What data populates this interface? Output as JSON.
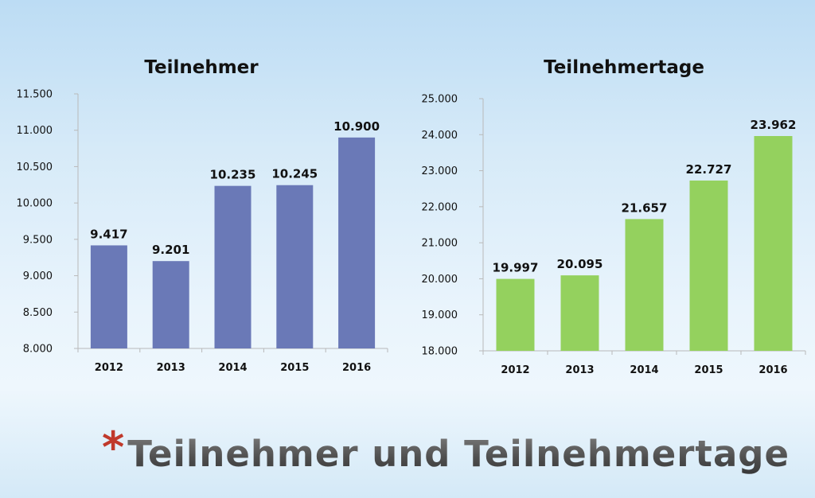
{
  "slide": {
    "title_marker": "*",
    "title": "Teilnehmer und Teilnehmertage"
  },
  "colors": {
    "series_left": "#6a79b7",
    "series_right": "#94d15e",
    "title_marker": "#c0392b"
  },
  "chart_data": [
    {
      "type": "bar",
      "title": "Teilnehmer",
      "categories": [
        "2012",
        "2013",
        "2014",
        "2015",
        "2016"
      ],
      "values": [
        9417,
        9201,
        10235,
        10245,
        10900
      ],
      "data_labels": [
        "9.417",
        "9.201",
        "10.235",
        "10.245",
        "10.900"
      ],
      "ylim": [
        8000,
        11500
      ],
      "yticks": [
        8000,
        8500,
        9000,
        9500,
        10000,
        10500,
        11000,
        11500
      ],
      "ytick_labels": [
        "8.000",
        "8.500",
        "9.000",
        "9.500",
        "10.000",
        "10.500",
        "11.000",
        "11.500"
      ],
      "xlabel": "",
      "ylabel": "",
      "grid": false,
      "legend": "none"
    },
    {
      "type": "bar",
      "title": "Teilnehmertage",
      "categories": [
        "2012",
        "2013",
        "2014",
        "2015",
        "2016"
      ],
      "values": [
        19997,
        20095,
        21657,
        22727,
        23962
      ],
      "data_labels": [
        "19.997",
        "20.095",
        "21.657",
        "22.727",
        "23.962"
      ],
      "ylim": [
        18000,
        25000
      ],
      "yticks": [
        18000,
        19000,
        20000,
        21000,
        22000,
        23000,
        24000,
        25000
      ],
      "ytick_labels": [
        "18.000",
        "19.000",
        "20.000",
        "21.000",
        "22.000",
        "23.000",
        "24.000",
        "25.000"
      ],
      "xlabel": "",
      "ylabel": "",
      "grid": false,
      "legend": "none"
    }
  ]
}
